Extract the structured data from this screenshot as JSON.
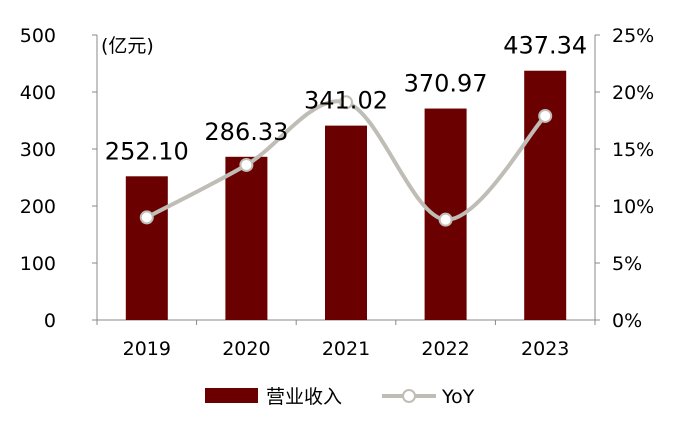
{
  "chart_data": {
    "type": "bar",
    "unit_label": "(亿元)",
    "categories": [
      "2019",
      "2020",
      "2021",
      "2022",
      "2023"
    ],
    "series": [
      {
        "name": "营业收入",
        "type": "bar",
        "axis": "left",
        "values": [
          252.1,
          286.33,
          341.02,
          370.97,
          437.34
        ],
        "labels": [
          "252.10",
          "286.33",
          "341.02",
          "370.97",
          "437.34"
        ],
        "color": "#6B0000"
      },
      {
        "name": "YoY",
        "type": "line",
        "axis": "right",
        "values": [
          9.0,
          13.6,
          19.1,
          8.8,
          17.9
        ],
        "color": "#BFBDB5"
      }
    ],
    "y_left": {
      "min": 0,
      "max": 500,
      "ticks": [
        "0",
        "100",
        "200",
        "300",
        "400",
        "500"
      ]
    },
    "y_right": {
      "min": 0,
      "max": 25,
      "ticks": [
        "0%",
        "5%",
        "10%",
        "15%",
        "20%",
        "25%"
      ]
    },
    "grid": false,
    "legend": "bottom"
  }
}
